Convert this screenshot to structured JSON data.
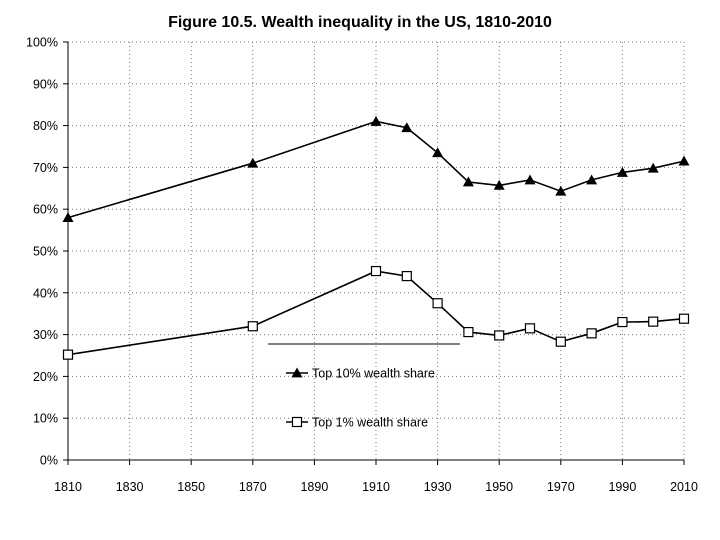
{
  "chart_data": {
    "type": "line",
    "title": "Figure 10.5. Wealth inequality in the US, 1810-2010",
    "xlabel": "",
    "ylabel": "",
    "xlim": [
      1810,
      2010
    ],
    "ylim": [
      0,
      100
    ],
    "x_ticks": [
      "1810",
      "1830",
      "1850",
      "1870",
      "1890",
      "1910",
      "1930",
      "1950",
      "1970",
      "1990",
      "2010"
    ],
    "y_ticks": [
      "0%",
      "10%",
      "20%",
      "30%",
      "40%",
      "50%",
      "60%",
      "70%",
      "80%",
      "90%",
      "100%"
    ],
    "grid": "horizontal dotted",
    "legend_position": "center",
    "series": [
      {
        "name": "Top 10% wealth share",
        "marker": "filled-triangle",
        "color": "#000000",
        "x": [
          1810,
          1870,
          1910,
          1920,
          1930,
          1940,
          1950,
          1960,
          1970,
          1980,
          1990,
          2000,
          2010
        ],
        "y": [
          58,
          71,
          81,
          79.5,
          73.5,
          66.5,
          65.7,
          67,
          64.3,
          67,
          68.8,
          69.8,
          71.5
        ]
      },
      {
        "name": "Top 1% wealth share",
        "marker": "open-square",
        "color": "#000000",
        "x": [
          1810,
          1870,
          1910,
          1920,
          1930,
          1940,
          1950,
          1960,
          1970,
          1980,
          1990,
          2000,
          2010
        ],
        "y": [
          25.2,
          32,
          45.2,
          44,
          37.5,
          30.6,
          29.8,
          31.5,
          28.3,
          30.3,
          33,
          33.1,
          33.8
        ]
      }
    ]
  }
}
